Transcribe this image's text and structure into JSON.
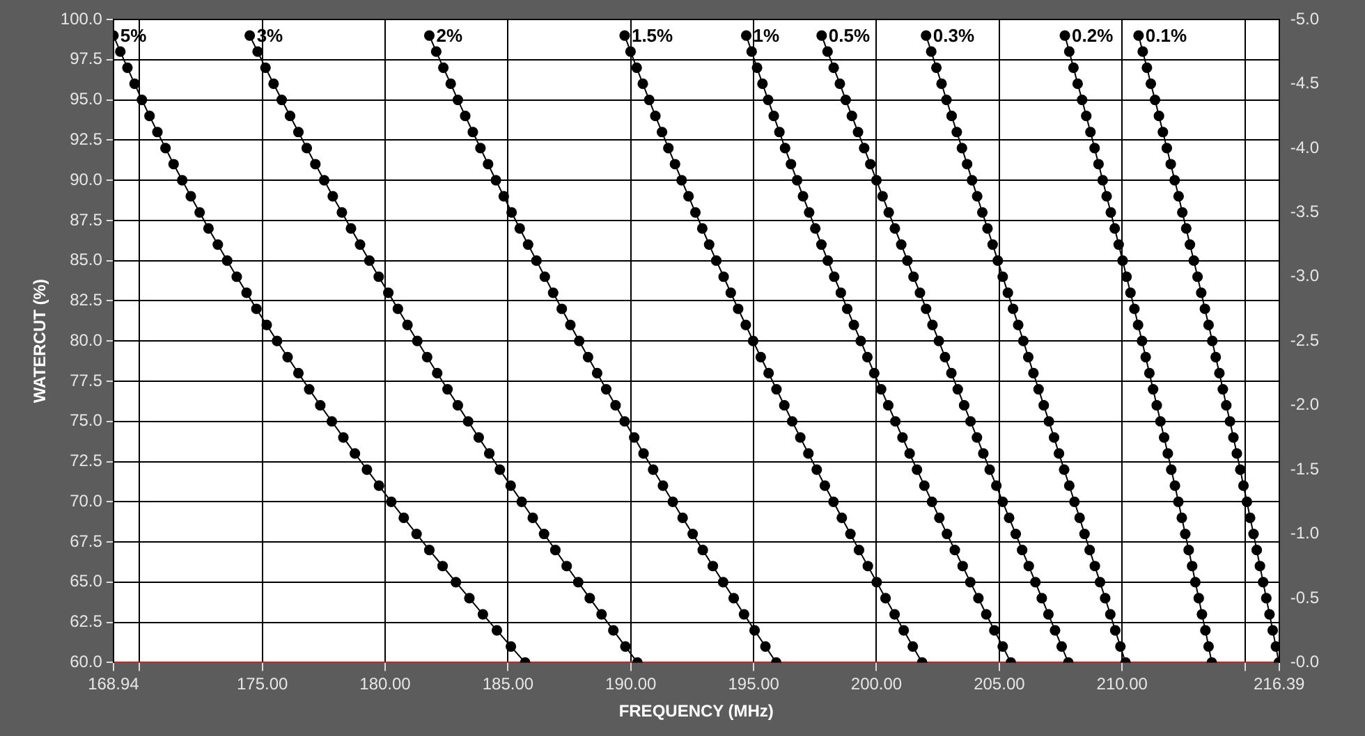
{
  "chart_data": {
    "type": "line",
    "xlabel": "FREQUENCY (MHz)",
    "ylabel": "WATERCUT (%)",
    "marker": "circle",
    "grid": true,
    "legend": false,
    "xlim": [
      168.94,
      216.39
    ],
    "xticks": [
      168.94,
      {
        "value": 170,
        "label": null
      },
      {
        "value": 175,
        "label": "175.00"
      },
      {
        "value": 180,
        "label": "180.00"
      },
      {
        "value": 185,
        "label": "185.00"
      },
      {
        "value": 190,
        "label": "190.00"
      },
      {
        "value": 195,
        "label": "195.00"
      },
      {
        "value": 200,
        "label": "200.00"
      },
      {
        "value": 205,
        "label": "205.00"
      },
      {
        "value": 210,
        "label": "210.00"
      },
      {
        "value": 215,
        "label": null
      },
      216.39
    ],
    "ylim": [
      60,
      100
    ],
    "yticks": [
      {
        "value": 60,
        "label": "60.0"
      },
      62.5,
      {
        "value": 65,
        "label": "65.0"
      },
      67.5,
      {
        "value": 70,
        "label": "70.0"
      },
      72.5,
      {
        "value": 75,
        "label": "75.0"
      },
      77.5,
      {
        "value": 80,
        "label": "80.0"
      },
      82.5,
      {
        "value": 85,
        "label": "85.0"
      },
      87.5,
      {
        "value": 90,
        "label": "90.0"
      },
      92.5,
      {
        "value": 95,
        "label": "95.0"
      },
      97.5,
      {
        "value": 100,
        "label": "100.0"
      }
    ],
    "y2lim": [
      0,
      -5
    ],
    "y2ticks": [
      {
        "value": 0,
        "label": "-0.0"
      },
      -0.5,
      {
        "value": -1,
        "label": "-1.0"
      },
      -1.5,
      {
        "value": -2,
        "label": "-2.0"
      },
      -2.5,
      {
        "value": -3,
        "label": "-3.0"
      },
      -3.5,
      {
        "value": -4,
        "label": "-4.0"
      },
      -4.5,
      {
        "value": -5,
        "label": "-5.0"
      }
    ],
    "series": [
      {
        "name": "5%",
        "color": "#000000",
        "x": [
          185.7,
          185.12,
          184.55,
          183.98,
          183.43,
          182.88,
          182.34,
          181.8,
          181.28,
          180.76,
          180.25,
          179.75,
          179.26,
          178.77,
          178.3,
          177.83,
          177.36,
          176.91,
          176.47,
          176.03,
          175.6,
          175.18,
          174.76,
          174.36,
          173.96,
          173.57,
          173.19,
          172.81,
          172.45,
          172.09,
          171.74,
          171.39,
          171.06,
          170.73,
          170.41,
          170.1,
          169.8,
          169.51,
          169.22,
          168.94
        ],
        "values": [
          60,
          61,
          62,
          63,
          64,
          65,
          66,
          67,
          68,
          69,
          70,
          71,
          72,
          73,
          74,
          75,
          76,
          77,
          78,
          79,
          80,
          81,
          82,
          83,
          84,
          85,
          86,
          87,
          88,
          89,
          90,
          91,
          92,
          93,
          94,
          95,
          96,
          97,
          98,
          99
        ]
      },
      {
        "name": "3%",
        "color": "#000000",
        "x": [
          190.27,
          189.78,
          189.29,
          188.81,
          188.33,
          187.86,
          187.39,
          186.93,
          186.47,
          186.01,
          185.56,
          185.11,
          184.67,
          184.24,
          183.81,
          183.38,
          182.96,
          182.54,
          182.12,
          181.71,
          181.31,
          180.91,
          180.52,
          180.13,
          179.74,
          179.36,
          178.98,
          178.61,
          178.24,
          177.87,
          177.52,
          177.16,
          176.81,
          176.47,
          176.13,
          175.79,
          175.46,
          175.13,
          174.81,
          174.49
        ],
        "values": [
          60,
          61,
          62,
          63,
          64,
          65,
          66,
          67,
          68,
          69,
          70,
          71,
          72,
          73,
          74,
          75,
          76,
          77,
          78,
          79,
          80,
          81,
          82,
          83,
          84,
          85,
          86,
          87,
          88,
          89,
          90,
          91,
          92,
          93,
          94,
          95,
          96,
          97,
          98,
          99
        ]
      },
      {
        "name": "2%",
        "color": "#000000",
        "x": [
          195.92,
          195.48,
          195.04,
          194.61,
          194.19,
          193.76,
          193.34,
          192.93,
          192.52,
          192.11,
          191.71,
          191.31,
          190.91,
          190.52,
          190.14,
          189.75,
          189.38,
          189.0,
          188.63,
          188.26,
          187.9,
          187.54,
          187.19,
          186.84,
          186.5,
          186.16,
          185.82,
          185.48,
          185.15,
          184.83,
          184.51,
          184.19,
          183.88,
          183.57,
          183.26,
          182.96,
          182.67,
          182.37,
          182.08,
          181.8
        ],
        "values": [
          60,
          61,
          62,
          63,
          64,
          65,
          66,
          67,
          68,
          69,
          70,
          71,
          72,
          73,
          74,
          75,
          76,
          77,
          78,
          79,
          80,
          81,
          82,
          83,
          84,
          85,
          86,
          87,
          88,
          89,
          90,
          91,
          92,
          93,
          94,
          95,
          96,
          97,
          98,
          99
        ]
      },
      {
        "name": "1.5%",
        "color": "#000000",
        "x": [
          201.86,
          201.48,
          201.11,
          200.74,
          200.37,
          200.01,
          199.65,
          199.29,
          198.94,
          198.59,
          198.25,
          197.9,
          197.57,
          197.23,
          196.9,
          196.57,
          196.25,
          195.93,
          195.61,
          195.29,
          194.98,
          194.68,
          194.37,
          194.07,
          193.78,
          193.48,
          193.19,
          192.91,
          192.63,
          192.35,
          192.07,
          191.8,
          191.53,
          191.27,
          191.0,
          190.75,
          190.49,
          190.24,
          189.99,
          189.75
        ],
        "values": [
          60,
          61,
          62,
          63,
          64,
          65,
          66,
          67,
          68,
          69,
          70,
          71,
          72,
          73,
          74,
          75,
          76,
          77,
          78,
          79,
          80,
          81,
          82,
          83,
          84,
          85,
          86,
          87,
          88,
          89,
          90,
          91,
          92,
          93,
          94,
          95,
          96,
          97,
          98,
          99
        ]
      },
      {
        "name": "1%",
        "color": "#000000",
        "x": [
          205.47,
          205.14,
          204.8,
          204.47,
          204.15,
          203.82,
          203.51,
          203.19,
          202.87,
          202.56,
          202.26,
          201.95,
          201.65,
          201.35,
          201.06,
          200.77,
          200.48,
          200.19,
          199.91,
          199.63,
          199.36,
          199.08,
          198.81,
          198.55,
          198.28,
          198.02,
          197.76,
          197.51,
          197.26,
          197.01,
          196.77,
          196.52,
          196.28,
          196.05,
          195.82,
          195.59,
          195.36,
          195.14,
          194.92,
          194.7
        ],
        "values": [
          60,
          61,
          62,
          63,
          64,
          65,
          66,
          67,
          68,
          69,
          70,
          71,
          72,
          73,
          74,
          75,
          76,
          77,
          78,
          79,
          80,
          81,
          82,
          83,
          84,
          85,
          86,
          87,
          88,
          89,
          90,
          91,
          92,
          93,
          94,
          95,
          96,
          97,
          98,
          99
        ]
      },
      {
        "name": "0.5%",
        "color": "#000000",
        "x": [
          207.81,
          207.54,
          207.27,
          207.0,
          206.73,
          206.47,
          206.2,
          205.93,
          205.67,
          205.4,
          205.14,
          204.88,
          204.61,
          204.35,
          204.09,
          203.83,
          203.57,
          203.31,
          203.05,
          202.79,
          202.54,
          202.28,
          202.02,
          201.77,
          201.51,
          201.26,
          201.01,
          200.75,
          200.5,
          200.25,
          200.0,
          199.75,
          199.5,
          199.25,
          199.0,
          198.75,
          198.51,
          198.26,
          198.01,
          197.77
        ],
        "values": [
          60,
          61,
          62,
          63,
          64,
          65,
          66,
          67,
          68,
          69,
          70,
          71,
          72,
          73,
          74,
          75,
          76,
          77,
          78,
          79,
          80,
          81,
          82,
          83,
          84,
          85,
          86,
          87,
          88,
          89,
          90,
          91,
          92,
          93,
          94,
          95,
          96,
          97,
          98,
          99
        ]
      },
      {
        "name": "0.3%",
        "color": "#000000",
        "x": [
          210.14,
          209.93,
          209.72,
          209.52,
          209.31,
          209.1,
          208.89,
          208.68,
          208.47,
          208.27,
          208.06,
          207.85,
          207.64,
          207.43,
          207.23,
          207.02,
          206.81,
          206.6,
          206.39,
          206.18,
          205.98,
          205.77,
          205.56,
          205.35,
          205.14,
          204.94,
          204.73,
          204.52,
          204.31,
          204.1,
          203.89,
          203.69,
          203.48,
          203.27,
          203.06,
          202.85,
          202.65,
          202.44,
          202.23,
          202.02
        ],
        "values": [
          60,
          61,
          62,
          63,
          64,
          65,
          66,
          67,
          68,
          69,
          70,
          71,
          72,
          73,
          74,
          75,
          76,
          77,
          78,
          79,
          80,
          81,
          82,
          83,
          84,
          85,
          86,
          87,
          88,
          89,
          90,
          91,
          92,
          93,
          94,
          95,
          96,
          97,
          98,
          99
        ]
      },
      {
        "name": "0.2%",
        "color": "#000000",
        "x": [
          213.65,
          213.52,
          213.39,
          213.25,
          213.12,
          212.98,
          212.85,
          212.71,
          212.57,
          212.43,
          212.29,
          212.15,
          212.0,
          211.86,
          211.71,
          211.56,
          211.41,
          211.26,
          211.11,
          210.96,
          210.81,
          210.65,
          210.5,
          210.34,
          210.18,
          210.02,
          209.86,
          209.7,
          209.54,
          209.37,
          209.21,
          209.04,
          208.88,
          208.71,
          208.54,
          208.37,
          208.19,
          208.02,
          207.85,
          207.67
        ],
        "values": [
          60,
          61,
          62,
          63,
          64,
          65,
          66,
          67,
          68,
          69,
          70,
          71,
          72,
          73,
          74,
          75,
          76,
          77,
          78,
          79,
          80,
          81,
          82,
          83,
          84,
          85,
          86,
          87,
          88,
          89,
          90,
          91,
          92,
          93,
          94,
          95,
          96,
          97,
          98,
          99
        ]
      },
      {
        "name": "0.1%",
        "color": "#000000",
        "x": [
          216.38,
          216.26,
          216.13,
          216.0,
          215.87,
          215.74,
          215.61,
          215.48,
          215.35,
          215.21,
          215.08,
          214.94,
          214.81,
          214.67,
          214.53,
          214.39,
          214.24,
          214.1,
          213.96,
          213.81,
          213.67,
          213.52,
          213.37,
          213.22,
          213.07,
          212.92,
          212.76,
          212.61,
          212.45,
          212.3,
          212.14,
          211.98,
          211.82,
          211.66,
          211.5,
          211.34,
          211.17,
          211.01,
          210.84,
          210.67
        ],
        "values": [
          60,
          61,
          62,
          63,
          64,
          65,
          66,
          67,
          68,
          69,
          70,
          71,
          72,
          73,
          74,
          75,
          76,
          77,
          78,
          79,
          80,
          81,
          82,
          83,
          84,
          85,
          86,
          87,
          88,
          89,
          90,
          91,
          92,
          93,
          94,
          95,
          96,
          97,
          98,
          99
        ]
      }
    ]
  }
}
